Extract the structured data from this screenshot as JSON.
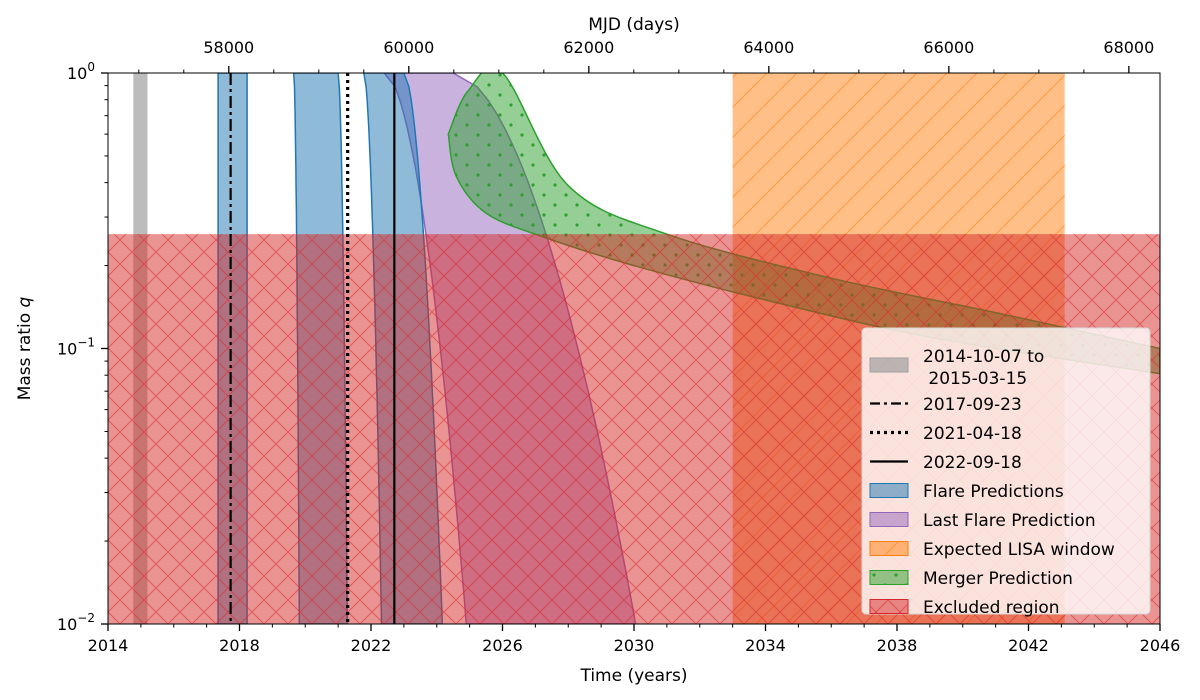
{
  "chart_data": {
    "type": "area",
    "title": "",
    "xlabel": "Time (years)",
    "ylabel": "Mass ratio q",
    "top_xlabel": "MJD (days)",
    "xlim": [
      2014,
      2046
    ],
    "ylim": [
      0.01,
      1.0
    ],
    "yscale": "log",
    "x_ticks": [
      "2014",
      "2018",
      "2022",
      "2026",
      "2030",
      "2034",
      "2038",
      "2042",
      "2046"
    ],
    "top_ticks": [
      "58000",
      "60000",
      "62000",
      "64000",
      "66000",
      "68000"
    ],
    "y_ticks": [
      {
        "base": "10",
        "exp": "−2"
      },
      {
        "base": "10",
        "exp": "−1"
      },
      {
        "base": "10",
        "exp": "0"
      }
    ],
    "colors": {
      "observed": "#a0a0a0",
      "flare": "#1f77b4",
      "last_flare": "#9467bd",
      "lisa": "#ff7f0e",
      "merger": "#2ca02c",
      "excluded": "#d62728"
    },
    "observed_window": {
      "start": 2014.77,
      "end": 2015.2,
      "label": "2014-10-07 to\n 2015-03-15"
    },
    "event_lines": [
      {
        "x": 2017.73,
        "style": "dashdot",
        "label": "2017-09-23"
      },
      {
        "x": 2021.29,
        "style": "dotted",
        "label": "2021-04-18"
      },
      {
        "x": 2022.71,
        "style": "solid",
        "label": "2022-09-18"
      }
    ],
    "flare_predictions": [
      {
        "x_at_q1": [
          2017.35,
          2018.23
        ],
        "x_at_q001": [
          2017.35,
          2018.23
        ]
      },
      {
        "x_at_q1": [
          2019.65,
          2021.0
        ],
        "x_at_q001": [
          2019.82,
          2021.28
        ]
      },
      {
        "x_at_q1": [
          2021.78,
          2023.0
        ],
        "x_at_q001": [
          2022.32,
          2024.17
        ]
      }
    ],
    "last_flare_prediction": {
      "x_at_q1": [
        2022.4,
        2024.5
      ],
      "x_at_q001": [
        2024.9,
        2030.05
      ]
    },
    "lisa_window": {
      "start": 2033.0,
      "end": 2043.1,
      "label": "Expected LISA window"
    },
    "merger_prediction": {
      "lower_x": [
        2024.35,
        2024.6,
        2025.5,
        2027.2,
        2030.0,
        2034.0,
        2039.0,
        2046.0
      ],
      "lower_q": [
        0.6,
        0.42,
        0.31,
        0.255,
        0.2,
        0.15,
        0.11,
        0.081
      ],
      "upper_x": [
        2024.35,
        2024.95,
        2026.0,
        2028.0,
        2031.0,
        2036.0,
        2041.0,
        2046.0
      ],
      "upper_q": [
        0.6,
        0.86,
        1.0,
        0.39,
        0.26,
        0.18,
        0.135,
        0.1
      ],
      "label": "Merger Prediction"
    },
    "excluded_region": {
      "x": [
        2014,
        2046
      ],
      "q": [
        0.01,
        0.26
      ],
      "label": "Excluded region"
    },
    "legend": {
      "position": "lower right",
      "entries": [
        {
          "key": "observed",
          "label": "2014-10-07 to\n 2015-03-15"
        },
        {
          "key": "dashdot",
          "label": "2017-09-23"
        },
        {
          "key": "dotted",
          "label": "2021-04-18"
        },
        {
          "key": "solid",
          "label": "2022-09-18"
        },
        {
          "key": "flare",
          "label": "Flare Predictions"
        },
        {
          "key": "last_flare",
          "label": "Last Flare Prediction"
        },
        {
          "key": "lisa",
          "label": "Expected LISA window"
        },
        {
          "key": "merger",
          "label": "Merger Prediction"
        },
        {
          "key": "excluded",
          "label": "Excluded region"
        }
      ]
    }
  }
}
